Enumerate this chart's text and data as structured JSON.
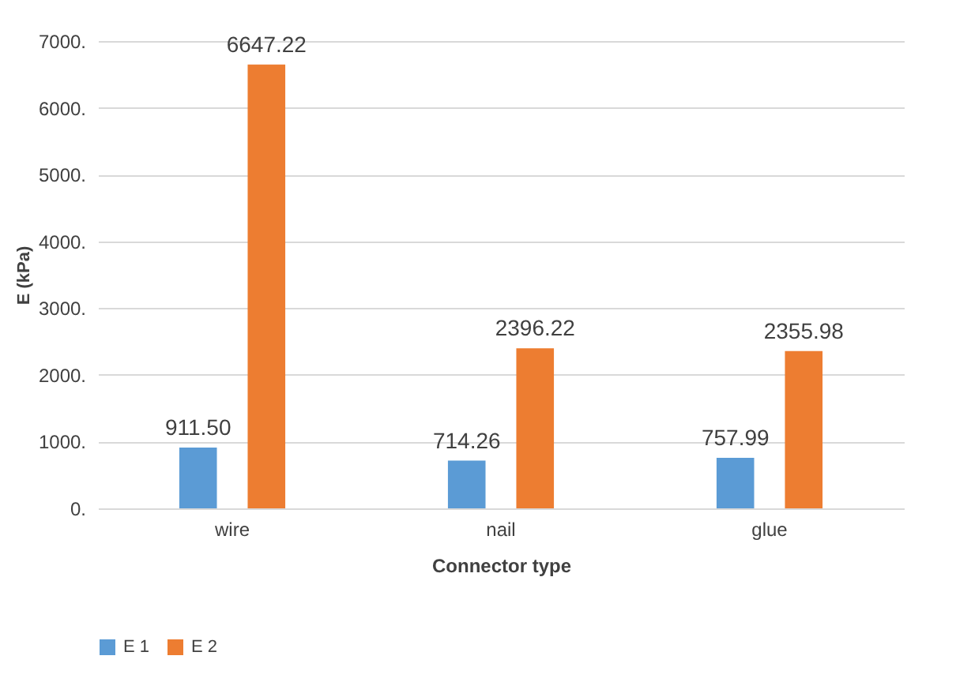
{
  "chart_data": {
    "type": "bar",
    "xlabel": "Connector type",
    "ylabel": "E (kPa)",
    "categories": [
      "wire",
      "nail",
      "glue"
    ],
    "series": [
      {
        "name": "E 1",
        "color": "#5b9bd5",
        "values": [
          911.5,
          714.26,
          757.99
        ],
        "value_labels": [
          "911.50",
          "714.26",
          "757.99"
        ]
      },
      {
        "name": "E 2",
        "color": "#ed7d31",
        "values": [
          6647.22,
          2396.22,
          2355.98
        ],
        "value_labels": [
          "6647.22",
          "2396.22",
          "2355.98"
        ]
      }
    ],
    "ylim": [
      0,
      7000
    ],
    "yticks": [
      {
        "value": 0,
        "label": "0."
      },
      {
        "value": 1000,
        "label": "1000."
      },
      {
        "value": 2000,
        "label": "2000."
      },
      {
        "value": 3000,
        "label": "3000."
      },
      {
        "value": 4000,
        "label": "4000."
      },
      {
        "value": 5000,
        "label": "5000."
      },
      {
        "value": 6000,
        "label": "6000."
      },
      {
        "value": 7000,
        "label": "7000."
      }
    ],
    "grid": "y",
    "legend": "bottom"
  }
}
